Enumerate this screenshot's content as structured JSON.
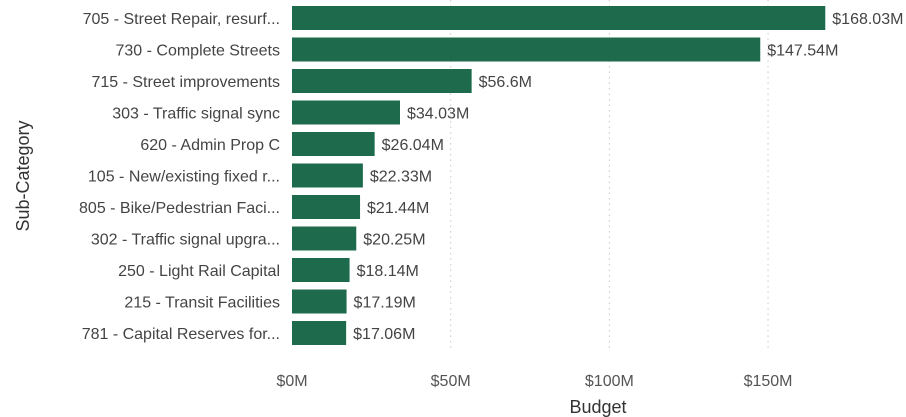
{
  "chart_data": {
    "type": "bar",
    "orientation": "horizontal",
    "xlabel": "Budget",
    "ylabel": "Sub-Category",
    "xlim": [
      0,
      190
    ],
    "x_ticks": [
      0,
      50,
      100,
      150
    ],
    "x_tick_labels": [
      "$0M",
      "$50M",
      "$100M",
      "$150M"
    ],
    "grid": "vertical-dotted",
    "bar_color": "#1e6a4c",
    "categories": [
      "705 - Street Repair, resurf...",
      "730 - Complete Streets",
      "715 - Street improvements",
      "303 - Traffic signal sync",
      "620 - Admin Prop C",
      "105 - New/existing fixed r...",
      "805 - Bike/Pedestrian Faci...",
      "302 - Traffic signal upgra...",
      "250 - Light Rail Capital",
      "215 - Transit Facilities",
      "781 - Capital Reserves for..."
    ],
    "values": [
      168.03,
      147.54,
      56.6,
      34.03,
      26.04,
      22.33,
      21.44,
      20.25,
      18.14,
      17.19,
      17.06
    ],
    "value_labels": [
      "$168.03M",
      "$147.54M",
      "$56.6M",
      "$34.03M",
      "$26.04M",
      "$22.33M",
      "$21.44M",
      "$20.25M",
      "$18.14M",
      "$17.19M",
      "$17.06M"
    ]
  }
}
